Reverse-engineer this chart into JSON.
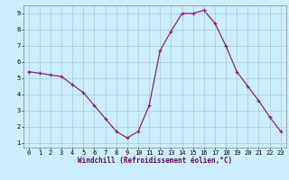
{
  "x": [
    0,
    1,
    2,
    3,
    4,
    5,
    6,
    7,
    8,
    9,
    10,
    11,
    12,
    13,
    14,
    15,
    16,
    17,
    18,
    19,
    20,
    21,
    22,
    23
  ],
  "y": [
    5.4,
    5.3,
    5.2,
    5.1,
    4.6,
    4.1,
    3.3,
    2.5,
    1.7,
    1.3,
    1.7,
    3.3,
    6.7,
    7.9,
    9.0,
    9.0,
    9.2,
    8.4,
    7.0,
    5.4,
    4.5,
    3.6,
    2.6,
    1.7
  ],
  "line_color": "#882288",
  "marker": "+",
  "marker_size": 3,
  "linewidth": 0.9,
  "markeredgewidth": 0.9,
  "bg_color": "#cceeff",
  "grid_color": "#aacccc",
  "xlabel": "Windchill (Refroidissement éolien,°C)",
  "xlabel_fontsize": 5.5,
  "tick_fontsize": 5.0,
  "xlim": [
    -0.5,
    23.5
  ],
  "ylim": [
    0.7,
    9.5
  ],
  "yticks": [
    1,
    2,
    3,
    4,
    5,
    6,
    7,
    8,
    9
  ],
  "xticks": [
    0,
    1,
    2,
    3,
    4,
    5,
    6,
    7,
    8,
    9,
    10,
    11,
    12,
    13,
    14,
    15,
    16,
    17,
    18,
    19,
    20,
    21,
    22,
    23
  ],
  "xlabel_color": "#660066",
  "spine_color": "#888888"
}
